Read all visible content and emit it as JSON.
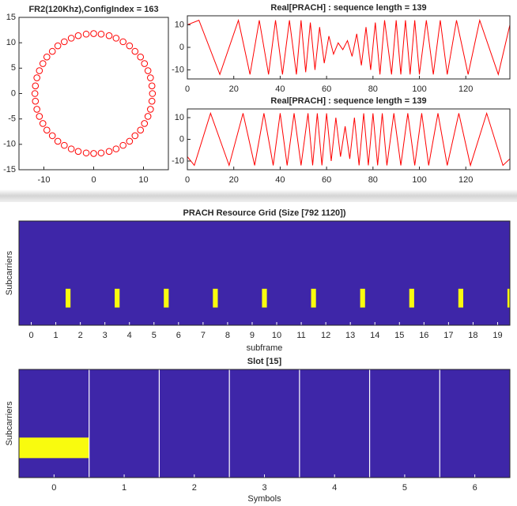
{
  "chart_data": [
    {
      "type": "scatter",
      "title": "FR2(120Khz),ConfigIndex = 163",
      "color": "#ff0000",
      "xlim": [
        -15,
        15
      ],
      "xticks": [
        -10,
        0,
        10
      ],
      "ylim": [
        -15,
        15
      ],
      "yticks": [
        -15,
        -10,
        -5,
        0,
        5,
        10,
        15
      ],
      "x": [
        11.8,
        11.7,
        11.4,
        10.9,
        10.2,
        9.4,
        8.3,
        7.2,
        5.9,
        4.5,
        3.1,
        1.5,
        0,
        -1.5,
        -3.1,
        -4.5,
        -5.9,
        -7.2,
        -8.3,
        -9.4,
        -10.2,
        -10.9,
        -11.4,
        -11.7,
        -11.8,
        -11.7,
        -11.4,
        -10.9,
        -10.2,
        -9.4,
        -8.3,
        -7.2,
        -5.9,
        -4.5,
        -3.1,
        -1.5,
        0,
        1.5,
        3.1,
        4.5,
        5.9,
        7.2,
        8.3,
        9.4,
        10.2,
        10.9,
        11.4,
        11.7
      ],
      "y": [
        0,
        1.5,
        3.1,
        4.5,
        5.9,
        7.2,
        8.3,
        9.4,
        10.2,
        10.9,
        11.4,
        11.7,
        11.8,
        11.7,
        11.4,
        10.9,
        10.2,
        9.4,
        8.3,
        7.2,
        5.9,
        4.5,
        3.1,
        1.5,
        0,
        -1.5,
        -3.1,
        -4.5,
        -5.9,
        -7.2,
        -8.3,
        -9.4,
        -10.2,
        -10.9,
        -11.4,
        -11.7,
        -11.8,
        -11.7,
        -11.4,
        -10.9,
        -10.2,
        -9.4,
        -8.3,
        -7.2,
        -5.9,
        -4.5,
        -3.1,
        -1.5
      ]
    },
    {
      "type": "line",
      "title": "Real[PRACH] : sequence length = 139",
      "color": "#ff0000",
      "xlim": [
        0,
        139
      ],
      "xticks": [
        0,
        20,
        40,
        60,
        80,
        100,
        120
      ],
      "ylim": [
        -14,
        14
      ],
      "yticks": [
        -10,
        0,
        10
      ],
      "x": [
        0,
        5,
        14,
        22,
        27,
        31,
        35,
        38,
        41,
        44,
        47,
        49,
        51,
        53,
        55,
        57,
        59,
        61,
        63,
        65,
        67,
        69,
        71,
        73,
        75,
        77,
        79,
        81,
        83,
        85,
        88,
        90,
        92,
        94,
        96,
        98,
        100,
        103,
        106,
        109,
        112,
        116,
        121,
        126,
        134,
        139
      ],
      "values": [
        10,
        12,
        -12,
        12,
        -12,
        12,
        -12,
        12,
        -12,
        12,
        -12,
        12,
        -11,
        11,
        -10,
        9,
        -7,
        5,
        -3,
        2,
        -1,
        3,
        -4,
        6,
        -8,
        9,
        -10,
        11,
        -12,
        12,
        -12,
        12,
        -12,
        12,
        -12,
        12,
        -12,
        12,
        -12,
        12,
        -12,
        12,
        -12,
        12,
        -12,
        10
      ]
    },
    {
      "type": "line",
      "title": "Real[PRACH] : sequence length = 139",
      "color": "#ff0000",
      "xlim": [
        0,
        139
      ],
      "xticks": [
        0,
        20,
        40,
        60,
        80,
        100,
        120
      ],
      "ylim": [
        -14,
        14
      ],
      "yticks": [
        -10,
        0,
        10
      ],
      "x": [
        0,
        3,
        10,
        18,
        24,
        29,
        33,
        37,
        40,
        43,
        46,
        49,
        52,
        54,
        56,
        58,
        60,
        62,
        64,
        66,
        68,
        70,
        72,
        74,
        76,
        78,
        80,
        82,
        84,
        86,
        89,
        92,
        95,
        98,
        101,
        104,
        108,
        112,
        117,
        122,
        129,
        136,
        139
      ],
      "values": [
        -8,
        -12,
        12,
        -12,
        12,
        -12,
        12,
        -12,
        12,
        -12,
        12,
        -12,
        12,
        -12,
        12,
        -12,
        12,
        -10,
        10,
        -8,
        6,
        -9,
        10,
        -12,
        12,
        -12,
        12,
        -12,
        12,
        -12,
        12,
        -12,
        12,
        -12,
        12,
        -12,
        12,
        -12,
        12,
        -12,
        12,
        -12,
        -9
      ]
    },
    {
      "type": "heatmap",
      "title": "PRACH Resource Grid (Size [792 1120])",
      "x_label": "subframe",
      "y_label": "Subcarriers",
      "background": "#3e26a8",
      "color": "#f9fb0e",
      "xlim": [
        -0.5,
        19.5
      ],
      "xticks": [
        0,
        1,
        2,
        3,
        4,
        5,
        6,
        7,
        8,
        9,
        10,
        11,
        12,
        13,
        14,
        15,
        16,
        17,
        18,
        19
      ],
      "x": [
        1.5,
        3.5,
        5.5,
        7.5,
        9.5,
        11.5,
        13.5,
        15.5,
        17.5,
        19.5
      ]
    },
    {
      "type": "heatmap",
      "title": "Slot [15]",
      "x_label": "Symbols",
      "y_label": "Subcarriers",
      "background": "#3e26a8",
      "color": "#f9fb0e",
      "separator_color": "#ffffff",
      "xlim": [
        -0.5,
        6.5
      ],
      "xticks": [
        0,
        1,
        2,
        3,
        4,
        5,
        6
      ],
      "x": [
        0
      ],
      "separators": [
        0.5,
        1.5,
        2.5,
        3.5,
        4.5,
        5.5
      ]
    }
  ]
}
